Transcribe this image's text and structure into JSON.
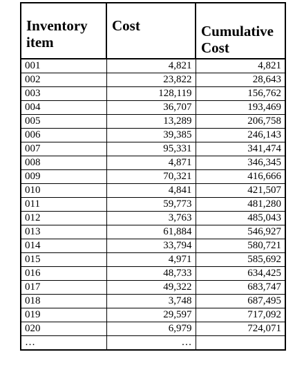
{
  "table": {
    "headers": {
      "item": "Inventory item",
      "cost": "Cost",
      "cumulative": "Cumulative Cost"
    },
    "rows": [
      {
        "item": "001",
        "cost": "4,821",
        "cumulative": "4,821"
      },
      {
        "item": "002",
        "cost": "23,822",
        "cumulative": "28,643"
      },
      {
        "item": "003",
        "cost": "128,119",
        "cumulative": "156,762"
      },
      {
        "item": "004",
        "cost": "36,707",
        "cumulative": "193,469"
      },
      {
        "item": "005",
        "cost": "13,289",
        "cumulative": "206,758"
      },
      {
        "item": "006",
        "cost": "39,385",
        "cumulative": "246,143"
      },
      {
        "item": "007",
        "cost": "95,331",
        "cumulative": "341,474"
      },
      {
        "item": "008",
        "cost": "4,871",
        "cumulative": "346,345"
      },
      {
        "item": "009",
        "cost": "70,321",
        "cumulative": "416,666"
      },
      {
        "item": "010",
        "cost": "4,841",
        "cumulative": "421,507"
      },
      {
        "item": "011",
        "cost": "59,773",
        "cumulative": "481,280"
      },
      {
        "item": "012",
        "cost": "3,763",
        "cumulative": "485,043"
      },
      {
        "item": "013",
        "cost": "61,884",
        "cumulative": "546,927"
      },
      {
        "item": "014",
        "cost": "33,794",
        "cumulative": "580,721"
      },
      {
        "item": "015",
        "cost": "4,971",
        "cumulative": "585,692"
      },
      {
        "item": "016",
        "cost": "48,733",
        "cumulative": "634,425"
      },
      {
        "item": "017",
        "cost": "49,322",
        "cumulative": "683,747"
      },
      {
        "item": "018",
        "cost": "3,748",
        "cumulative": "687,495"
      },
      {
        "item": "019",
        "cost": "29,597",
        "cumulative": "717,092"
      },
      {
        "item": "020",
        "cost": "6,979",
        "cumulative": "724,071"
      },
      {
        "item": "…",
        "cost": "…",
        "cumulative": ""
      }
    ]
  }
}
